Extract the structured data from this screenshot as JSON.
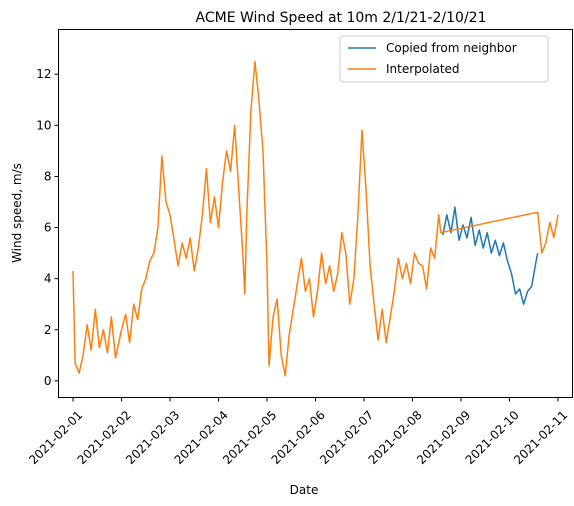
{
  "chart_data": {
    "type": "line",
    "title": "ACME Wind Speed at 10m 2/1/21-2/10/21",
    "xlabel": "Date",
    "ylabel": "Wind speed, m/s",
    "xlim": [
      "2021-01-31T16:48",
      "2021-02-11T07:12"
    ],
    "ylim": [
      -0.65,
      13.75
    ],
    "x_ticks": [
      "2021-02-01",
      "2021-02-02",
      "2021-02-03",
      "2021-02-04",
      "2021-02-05",
      "2021-02-06",
      "2021-02-07",
      "2021-02-08",
      "2021-02-09",
      "2021-02-10",
      "2021-02-11"
    ],
    "y_ticks": [
      0,
      2,
      4,
      6,
      8,
      10,
      12
    ],
    "grid": false,
    "legend_position": "top-right",
    "series": [
      {
        "name": "Copied from neighbor",
        "color": "#1f77b4",
        "points": [
          [
            "2021-02-08T15:00",
            5.7
          ],
          [
            "2021-02-08T17:00",
            6.5
          ],
          [
            "2021-02-08T19:00",
            5.8
          ],
          [
            "2021-02-08T21:00",
            6.8
          ],
          [
            "2021-02-08T23:00",
            5.5
          ],
          [
            "2021-02-09T01:00",
            6.1
          ],
          [
            "2021-02-09T03:00",
            5.6
          ],
          [
            "2021-02-09T05:00",
            6.4
          ],
          [
            "2021-02-09T07:00",
            5.3
          ],
          [
            "2021-02-09T09:00",
            5.9
          ],
          [
            "2021-02-09T11:00",
            5.2
          ],
          [
            "2021-02-09T13:00",
            5.8
          ],
          [
            "2021-02-09T15:00",
            5.0
          ],
          [
            "2021-02-09T17:00",
            5.5
          ],
          [
            "2021-02-09T19:00",
            4.9
          ],
          [
            "2021-02-09T21:00",
            5.4
          ],
          [
            "2021-02-09T23:00",
            4.7
          ],
          [
            "2021-02-10T01:00",
            4.2
          ],
          [
            "2021-02-10T03:00",
            3.4
          ],
          [
            "2021-02-10T05:00",
            3.6
          ],
          [
            "2021-02-10T07:00",
            3.0
          ],
          [
            "2021-02-10T09:00",
            3.5
          ],
          [
            "2021-02-10T11:00",
            3.7
          ],
          [
            "2021-02-10T13:00",
            4.6
          ],
          [
            "2021-02-10T14:00",
            5.0
          ]
        ]
      },
      {
        "name": "Interpolated",
        "color": "#ff7f0e",
        "points": [
          [
            "2021-02-01T00:00",
            4.3
          ],
          [
            "2021-02-01T01:00",
            0.7
          ],
          [
            "2021-02-01T03:00",
            0.3
          ],
          [
            "2021-02-01T05:00",
            1.0
          ],
          [
            "2021-02-01T07:00",
            2.2
          ],
          [
            "2021-02-01T09:00",
            1.2
          ],
          [
            "2021-02-01T11:00",
            2.8
          ],
          [
            "2021-02-01T13:00",
            1.3
          ],
          [
            "2021-02-01T15:00",
            2.0
          ],
          [
            "2021-02-01T17:00",
            1.1
          ],
          [
            "2021-02-01T19:00",
            2.5
          ],
          [
            "2021-02-01T21:00",
            0.9
          ],
          [
            "2021-02-02T00:00",
            2.0
          ],
          [
            "2021-02-02T02:00",
            2.6
          ],
          [
            "2021-02-02T04:00",
            1.5
          ],
          [
            "2021-02-02T06:00",
            3.0
          ],
          [
            "2021-02-02T08:00",
            2.4
          ],
          [
            "2021-02-02T10:00",
            3.6
          ],
          [
            "2021-02-02T12:00",
            4.0
          ],
          [
            "2021-02-02T14:00",
            4.7
          ],
          [
            "2021-02-02T16:00",
            5.0
          ],
          [
            "2021-02-02T18:00",
            6.0
          ],
          [
            "2021-02-02T20:00",
            8.8
          ],
          [
            "2021-02-02T22:00",
            7.0
          ],
          [
            "2021-02-03T00:00",
            6.5
          ],
          [
            "2021-02-03T02:00",
            5.5
          ],
          [
            "2021-02-03T04:00",
            4.5
          ],
          [
            "2021-02-03T06:00",
            5.4
          ],
          [
            "2021-02-03T08:00",
            4.8
          ],
          [
            "2021-02-03T10:00",
            5.6
          ],
          [
            "2021-02-03T12:00",
            4.3
          ],
          [
            "2021-02-03T14:00",
            5.2
          ],
          [
            "2021-02-03T16:00",
            6.5
          ],
          [
            "2021-02-03T18:00",
            8.3
          ],
          [
            "2021-02-03T20:00",
            6.2
          ],
          [
            "2021-02-03T22:00",
            7.2
          ],
          [
            "2021-02-04T00:00",
            6.0
          ],
          [
            "2021-02-04T02:00",
            7.8
          ],
          [
            "2021-02-04T04:00",
            9.0
          ],
          [
            "2021-02-04T06:00",
            8.2
          ],
          [
            "2021-02-04T08:00",
            10.0
          ],
          [
            "2021-02-04T10:00",
            7.5
          ],
          [
            "2021-02-04T12:00",
            5.0
          ],
          [
            "2021-02-04T13:00",
            3.4
          ],
          [
            "2021-02-04T14:00",
            6.5
          ],
          [
            "2021-02-04T16:00",
            10.5
          ],
          [
            "2021-02-04T18:00",
            12.5
          ],
          [
            "2021-02-04T20:00",
            11.0
          ],
          [
            "2021-02-04T22:00",
            9.0
          ],
          [
            "2021-02-05T00:00",
            4.5
          ],
          [
            "2021-02-05T01:00",
            0.6
          ],
          [
            "2021-02-05T03:00",
            2.5
          ],
          [
            "2021-02-05T05:00",
            3.2
          ],
          [
            "2021-02-05T07:00",
            1.0
          ],
          [
            "2021-02-05T09:00",
            0.2
          ],
          [
            "2021-02-05T11:00",
            1.8
          ],
          [
            "2021-02-05T13:00",
            2.8
          ],
          [
            "2021-02-05T15:00",
            3.8
          ],
          [
            "2021-02-05T17:00",
            4.8
          ],
          [
            "2021-02-05T19:00",
            3.5
          ],
          [
            "2021-02-05T21:00",
            4.0
          ],
          [
            "2021-02-05T23:00",
            2.5
          ],
          [
            "2021-02-06T01:00",
            3.5
          ],
          [
            "2021-02-06T03:00",
            5.0
          ],
          [
            "2021-02-06T05:00",
            3.8
          ],
          [
            "2021-02-06T07:00",
            4.5
          ],
          [
            "2021-02-06T09:00",
            3.5
          ],
          [
            "2021-02-06T11:00",
            4.2
          ],
          [
            "2021-02-06T13:00",
            5.8
          ],
          [
            "2021-02-06T15:00",
            5.0
          ],
          [
            "2021-02-06T17:00",
            3.0
          ],
          [
            "2021-02-06T19:00",
            4.0
          ],
          [
            "2021-02-06T21:00",
            6.5
          ],
          [
            "2021-02-06T23:00",
            9.8
          ],
          [
            "2021-02-07T01:00",
            7.5
          ],
          [
            "2021-02-07T03:00",
            4.5
          ],
          [
            "2021-02-07T05:00",
            3.0
          ],
          [
            "2021-02-07T07:00",
            1.6
          ],
          [
            "2021-02-07T09:00",
            2.8
          ],
          [
            "2021-02-07T11:00",
            1.5
          ],
          [
            "2021-02-07T13:00",
            2.5
          ],
          [
            "2021-02-07T15:00",
            3.5
          ],
          [
            "2021-02-07T17:00",
            4.8
          ],
          [
            "2021-02-07T19:00",
            4.0
          ],
          [
            "2021-02-07T21:00",
            4.6
          ],
          [
            "2021-02-07T23:00",
            3.8
          ],
          [
            "2021-02-08T01:00",
            5.0
          ],
          [
            "2021-02-08T03:00",
            4.6
          ],
          [
            "2021-02-08T05:00",
            4.5
          ],
          [
            "2021-02-08T07:00",
            3.6
          ],
          [
            "2021-02-08T09:00",
            5.2
          ],
          [
            "2021-02-08T11:00",
            4.8
          ],
          [
            "2021-02-08T13:00",
            6.5
          ],
          [
            "2021-02-08T14:00",
            5.8
          ],
          [
            "2021-02-10T14:00",
            6.6
          ],
          [
            "2021-02-10T16:00",
            5.0
          ],
          [
            "2021-02-10T18:00",
            5.4
          ],
          [
            "2021-02-10T20:00",
            6.2
          ],
          [
            "2021-02-10T22:00",
            5.6
          ],
          [
            "2021-02-11T00:00",
            6.5
          ]
        ]
      }
    ]
  }
}
